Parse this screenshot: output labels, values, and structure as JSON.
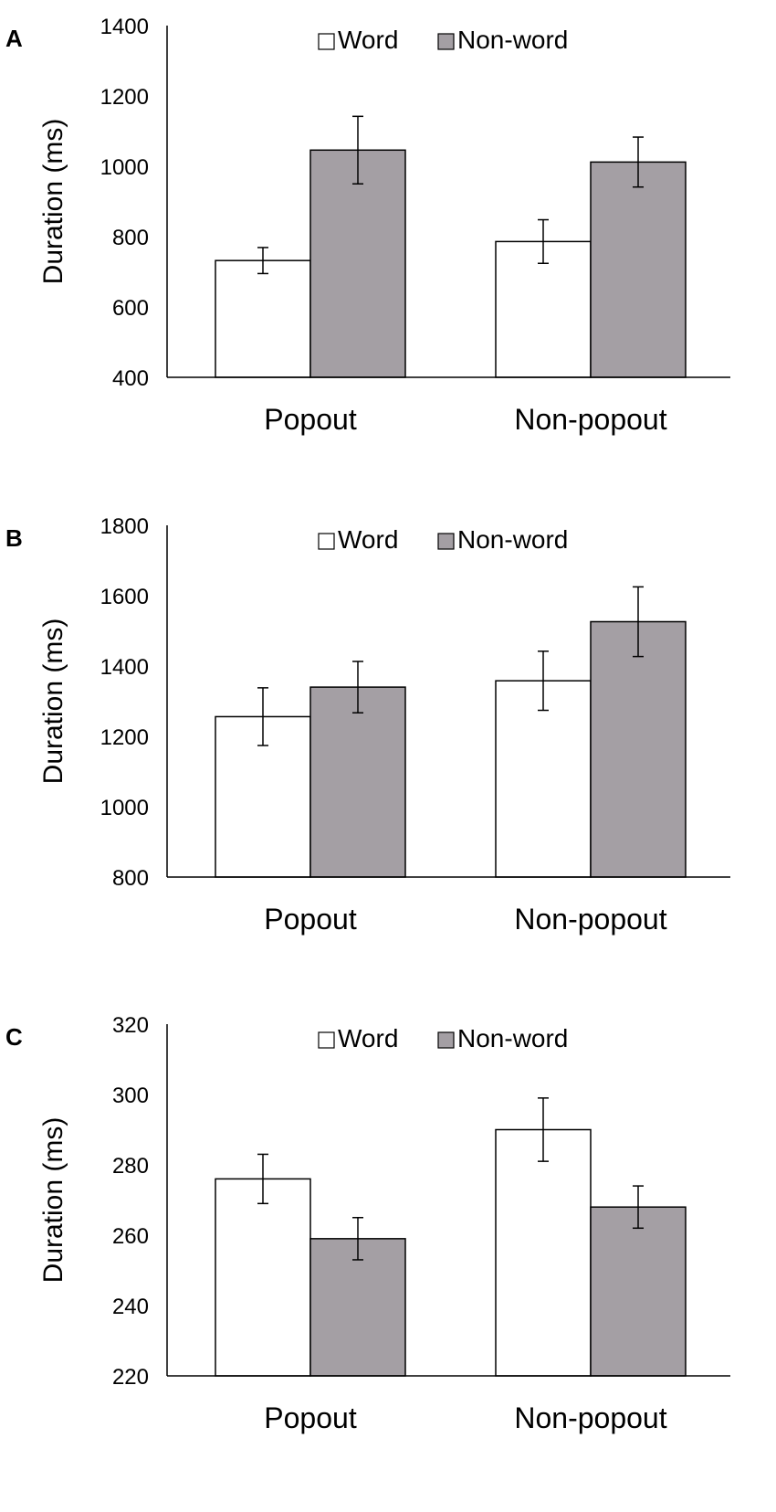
{
  "chart_data": [
    {
      "panel": "A",
      "type": "bar",
      "categories": [
        "Popout",
        "Non-popout"
      ],
      "series": [
        {
          "name": "Word",
          "values": [
            732,
            786
          ],
          "error": [
            37,
            62
          ],
          "color": "#ffffff"
        },
        {
          "name": "Non-word",
          "values": [
            1046,
            1012
          ],
          "error": [
            96,
            71
          ],
          "color": "#a49fa4"
        }
      ],
      "ylabel": "Duration (ms)",
      "ylim": [
        400,
        1400
      ],
      "yticks": [
        400,
        600,
        800,
        1000,
        1200,
        1400
      ],
      "legend": "top-center",
      "grid": false
    },
    {
      "panel": "B",
      "type": "bar",
      "categories": [
        "Popout",
        "Non-popout"
      ],
      "series": [
        {
          "name": "Word",
          "values": [
            1256,
            1358
          ],
          "error": [
            82,
            84
          ],
          "color": "#ffffff"
        },
        {
          "name": "Non-word",
          "values": [
            1340,
            1526
          ],
          "error": [
            73,
            99
          ],
          "color": "#a49fa4"
        }
      ],
      "ylabel": "Duration (ms)",
      "ylim": [
        800,
        1800
      ],
      "yticks": [
        800,
        1000,
        1200,
        1400,
        1600,
        1800
      ],
      "legend": "top-center",
      "grid": false
    },
    {
      "panel": "C",
      "type": "bar",
      "categories": [
        "Popout",
        "Non-popout"
      ],
      "series": [
        {
          "name": "Word",
          "values": [
            276,
            290
          ],
          "error": [
            7,
            9
          ],
          "color": "#ffffff"
        },
        {
          "name": "Non-word",
          "values": [
            259,
            268
          ],
          "error": [
            6,
            6
          ],
          "color": "#a49fa4"
        }
      ],
      "ylabel": "Duration (ms)",
      "ylim": [
        220,
        320
      ],
      "yticks": [
        220,
        240,
        260,
        280,
        300,
        320
      ],
      "legend": "top-center",
      "grid": false
    }
  ]
}
